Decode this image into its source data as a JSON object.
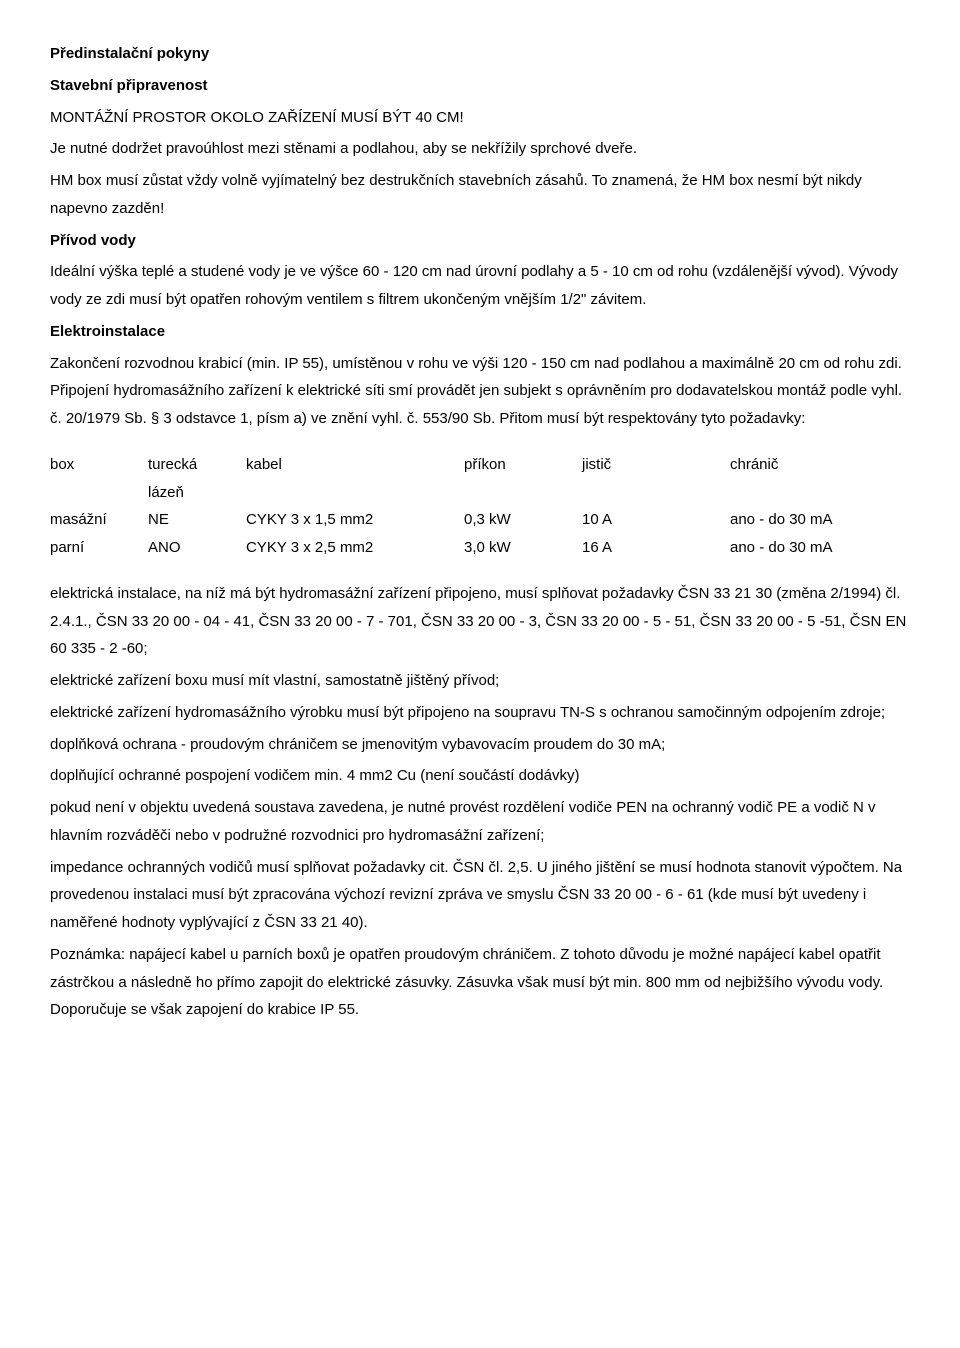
{
  "headings": {
    "h1": "Předinstalační pokyny",
    "h2": "Stavební připravenost",
    "h3": "MONTÁŽNÍ PROSTOR OKOLO ZAŘÍZENÍ MUSÍ BÝT 40 CM!",
    "privod": "Přívod vody",
    "elektro": "Elektroinstalace"
  },
  "paras": {
    "p1": "Je nutné dodržet pravoúhlost mezi stěnami a podlahou, aby se nekřížily sprchové dveře.",
    "p2": "HM box musí zůstat vždy volně vyjímatelný bez destrukčních stavebních zásahů. To znamená, že HM box nesmí být nikdy napevno zazděn!",
    "p3": "Ideální výška teplé a studené vody je ve výšce 60 - 120 cm nad úrovní podlahy a 5 - 10 cm od rohu (vzdálenější vývod). Vývody vody ze zdi musí být opatřen rohovým ventilem s filtrem ukončeným vnějším 1/2\" závitem.",
    "p4": "Zakončení rozvodnou krabicí (min. IP 55), umístěnou v rohu ve výši 120 - 150 cm nad podlahou a maximálně 20 cm od rohu zdi. Připojení hydromasážního zařízení k elektrické síti smí provádět jen subjekt s oprávněním pro dodavatelskou montáž podle vyhl. č. 20/1979 Sb. § 3 odstavce 1, písm a) ve znění vyhl. č. 553/90 Sb. Přitom musí být respektovány tyto požadavky:"
  },
  "table": {
    "head": {
      "box": "box",
      "turecka": "turecká",
      "kabel": "kabel",
      "prikon": "příkon",
      "jistic": "jistič",
      "chranic": "chránič"
    },
    "sub": {
      "lazen": "lázeň"
    },
    "rows": [
      {
        "box": "masážní",
        "turecka": "NE",
        "kabel": "CYKY 3 x 1,5 mm2",
        "prikon": "0,3 kW",
        "jistic": "10 A",
        "chranic": "ano - do 30 mA"
      },
      {
        "box": "parní",
        "turecka": "ANO",
        "kabel": "CYKY 3 x 2,5 mm2",
        "prikon": "3,0 kW",
        "jistic": "16 A",
        "chranic": "ano - do 30 mA"
      }
    ]
  },
  "after": {
    "a1": "elektrická instalace, na níž má být hydromasážní zařízení připojeno, musí splňovat požadavky ČSN 33 21 30 (změna 2/1994) čl. 2.4.1., ČSN 33 20 00 - 04 - 41, ČSN 33 20 00 - 7 - 701, ČSN 33 20 00 - 3, ČSN 33 20 00 - 5 - 51, ČSN 33 20 00 - 5 -51, ČSN EN 60 335 - 2 -60;",
    "a2": "elektrické zařízení boxu musí mít vlastní, samostatně jištěný přívod;",
    "a3": "elektrické zařízení hydromasážního výrobku musí být připojeno na soupravu TN-S s ochranou samočinným odpojením zdroje;",
    "a4": "doplňková ochrana - proudovým chráničem se jmenovitým vybavovacím proudem do 30 mA;",
    "a5": "doplňující ochranné pospojení vodičem min. 4 mm2 Cu (není součástí dodávky)",
    "a6": "pokud není v objektu uvedená soustava zavedena, je nutné provést rozdělení vodiče PEN na ochranný vodič PE a vodič N v hlavním rozváděči nebo v podružné rozvodnici pro hydromasážní zařízení;",
    "a7": "impedance ochranných vodičů musí splňovat požadavky cit. ČSN čl. 2,5. U jiného jištění se musí hodnota stanovit výpočtem. Na provedenou instalaci musí být zpracována výchozí revizní zpráva ve smyslu ČSN 33 20 00 - 6 - 61 (kde musí být uvedeny i naměřené hodnoty vyplývající z ČSN 33 21 40).",
    "a8": "Poznámka: napájecí kabel u parních boxů je opatřen proudovým chráničem. Z tohoto důvodu je možné napájecí kabel opatřit zástrčkou a následně ho přímo zapojit do elektrické zásuvky. Zásuvka však musí být min. 800 mm od nejbižšího vývodu vody. Doporučuje se však zapojení do krabice IP 55."
  }
}
